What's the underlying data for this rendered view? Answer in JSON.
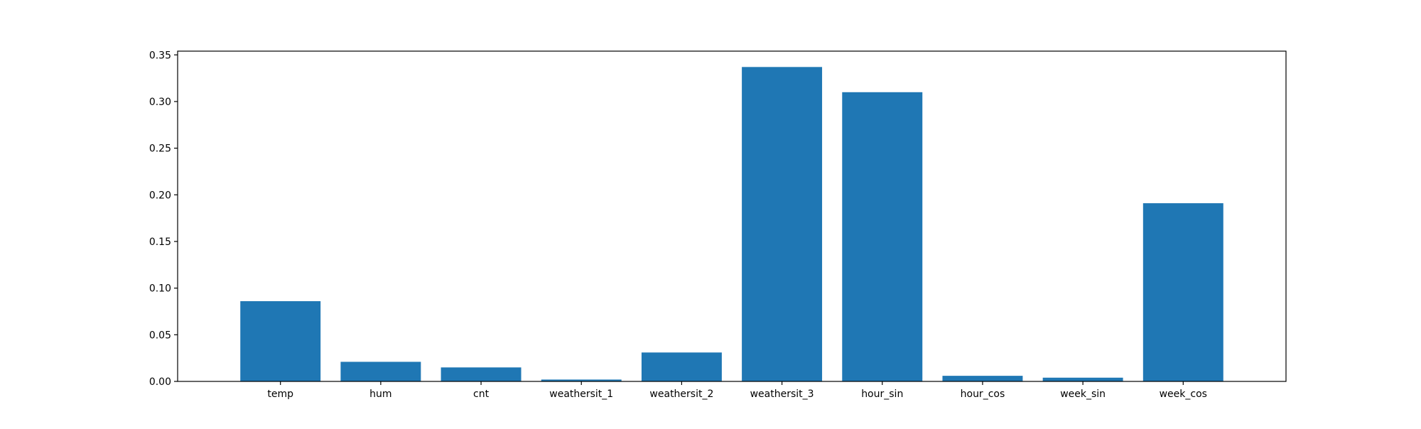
{
  "chart_data": {
    "type": "bar",
    "categories": [
      "temp",
      "hum",
      "cnt",
      "weathersit_1",
      "weathersit_2",
      "weathersit_3",
      "hour_sin",
      "hour_cos",
      "week_sin",
      "week_cos"
    ],
    "values": [
      0.086,
      0.021,
      0.015,
      0.002,
      0.031,
      0.337,
      0.31,
      0.006,
      0.004,
      0.191
    ],
    "title": "",
    "xlabel": "",
    "ylabel": "",
    "ylim": [
      0,
      0.354
    ],
    "yticks": [
      0.0,
      0.05,
      0.1,
      0.15,
      0.2,
      0.25,
      0.3,
      0.35
    ],
    "ytick_labels": [
      "0.00",
      "0.05",
      "0.10",
      "0.15",
      "0.20",
      "0.25",
      "0.30",
      "0.35"
    ],
    "grid": false,
    "bar_color": "#1f77b4",
    "axis_color": "#000000"
  }
}
